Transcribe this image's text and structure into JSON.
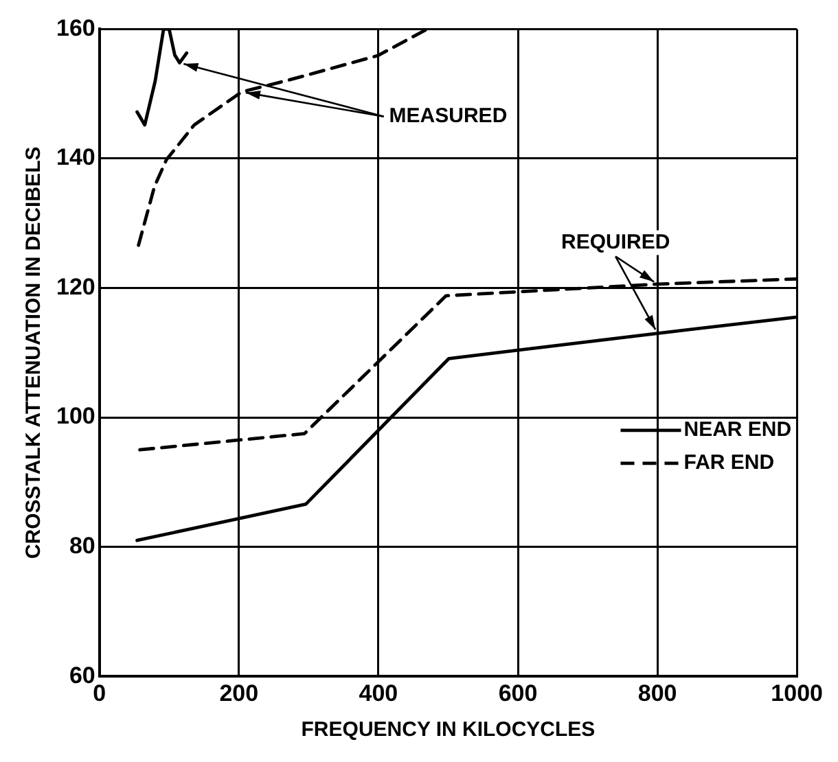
{
  "chart_data": {
    "type": "line",
    "xlabel": "FREQUENCY IN KILOCYCLES",
    "ylabel": "CROSSTALK ATTENUATION IN DECIBELS",
    "xlim": [
      0,
      1000
    ],
    "xticks": [
      0,
      200,
      400,
      600,
      800,
      1000
    ],
    "ylim": [
      60,
      160
    ],
    "yticks": [
      60,
      80,
      100,
      120,
      140,
      160
    ],
    "grid": true,
    "legend": "right",
    "marker": "none",
    "annotations": [
      {
        "text": "MEASURED",
        "x": 204,
        "y": 150.3
      },
      {
        "text": "REQUIRED",
        "x": 800,
        "y": 120.6
      }
    ],
    "series": [
      {
        "name": "NEAR END",
        "color": "#000000",
        "line_style": "solid",
        "x": [
          54,
          296,
          501,
          800,
          1000
        ],
        "values": [
          81,
          86.6,
          109.1,
          113,
          115.5
        ]
      },
      {
        "name": "FAR END",
        "color": "#000000",
        "line_style": "dashed",
        "x": [
          58,
          294,
          497,
          800,
          1000
        ],
        "values": [
          95,
          97.5,
          118.8,
          120.6,
          121.4
        ]
      },
      {
        "color": "#000000",
        "line_style": "solid",
        "x": [
          54,
          65,
          80,
          92,
          100,
          108,
          115,
          125
        ],
        "values": [
          147.2,
          145.2,
          152,
          160,
          160,
          156,
          154.8,
          156.3
        ]
      },
      {
        "color": "#000000",
        "line_style": "dashed",
        "x": [
          56,
          79,
          96,
          136,
          204,
          274,
          399,
          470
        ],
        "values": [
          126.6,
          135.7,
          139.8,
          145.2,
          150.3,
          152.2,
          155.9,
          160
        ]
      }
    ]
  }
}
